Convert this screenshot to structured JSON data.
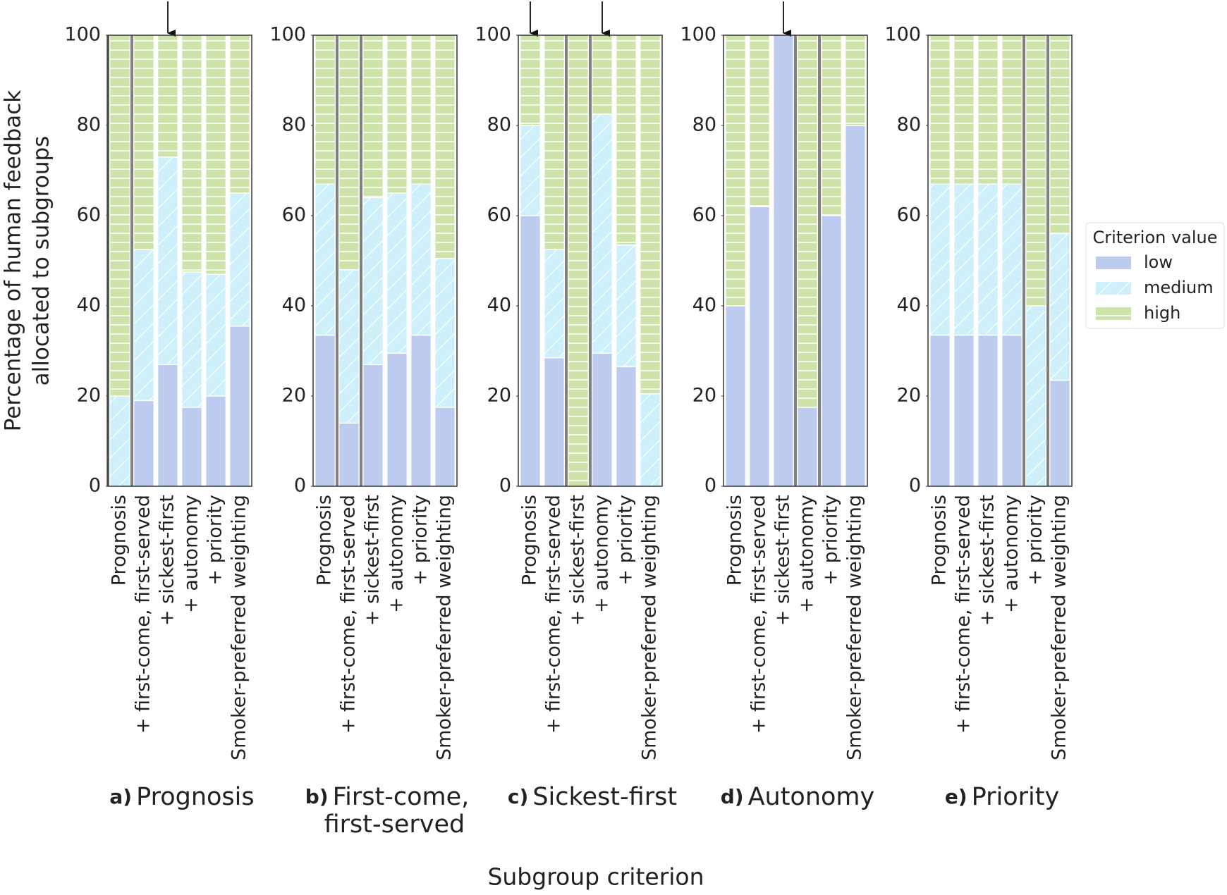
{
  "ylabel": [
    "Percentage of human feedback",
    "allocated to subgroups"
  ],
  "xlabel": "Subgroup criterion",
  "legend_title": "Criterion value",
  "chart_data": [
    {
      "type": "stacked_bar",
      "label": "a)",
      "title": [
        "Prognosis"
      ],
      "categories": [
        "Prognosis",
        "+ first-come, first-served",
        "+ sickest-first",
        "+ autonomy",
        "+ priority",
        "Smoker-preferred weighting"
      ],
      "highlight": 0,
      "arrows": [
        2
      ],
      "ylim": [
        0,
        100
      ],
      "yticks": [
        0,
        20,
        40,
        60,
        80,
        100
      ],
      "series": [
        {
          "name": "low",
          "color": "#bccbee",
          "values": [
            0,
            19,
            27,
            17.5,
            20,
            35.5
          ]
        },
        {
          "name": "medium",
          "color": "#cdf0fb",
          "values": [
            20,
            33.5,
            46,
            30,
            27,
            29.5
          ]
        },
        {
          "name": "high",
          "color": "#cde3a9",
          "values": [
            80,
            47.5,
            27,
            52.5,
            53,
            35
          ]
        }
      ]
    },
    {
      "type": "stacked_bar",
      "label": "b)",
      "title": [
        "First-come,",
        "first-served"
      ],
      "categories": [
        "Prognosis",
        "+ first-come, first-served",
        "+ sickest-first",
        "+ autonomy",
        "+ priority",
        "Smoker-preferred weighting"
      ],
      "highlight": 1,
      "arrows": [],
      "ylim": [
        0,
        100
      ],
      "yticks": [
        0,
        20,
        40,
        60,
        80,
        100
      ],
      "series": [
        {
          "name": "low",
          "color": "#bccbee",
          "values": [
            33.5,
            14,
            27,
            29.5,
            33.5,
            17.5
          ]
        },
        {
          "name": "medium",
          "color": "#cdf0fb",
          "values": [
            33.5,
            34,
            37,
            35.5,
            33.5,
            33
          ]
        },
        {
          "name": "high",
          "color": "#cde3a9",
          "values": [
            33,
            52,
            36,
            35,
            33,
            49.5
          ]
        }
      ]
    },
    {
      "type": "stacked_bar",
      "label": "c)",
      "title": [
        "Sickest-first"
      ],
      "categories": [
        "Prognosis",
        "+ first-come, first-served",
        "+ sickest-first",
        "+ autonomy",
        "+ priority",
        "Smoker-preferred weighting"
      ],
      "highlight": 2,
      "arrows": [
        0,
        3
      ],
      "ylim": [
        0,
        100
      ],
      "yticks": [
        0,
        20,
        40,
        60,
        80,
        100
      ],
      "series": [
        {
          "name": "low",
          "color": "#bccbee",
          "values": [
            60,
            28.5,
            0,
            29.5,
            26.5,
            0
          ]
        },
        {
          "name": "medium",
          "color": "#cdf0fb",
          "values": [
            20,
            24,
            0,
            53,
            27,
            20.5
          ]
        },
        {
          "name": "high",
          "color": "#cde3a9",
          "values": [
            20,
            47.5,
            100,
            17.5,
            46.5,
            79.5
          ]
        }
      ]
    },
    {
      "type": "stacked_bar",
      "label": "d)",
      "title": [
        "Autonomy"
      ],
      "categories": [
        "Prognosis",
        "+ first-come, first-served",
        "+ sickest-first",
        "+ autonomy",
        "+ priority",
        "Smoker-preferred weighting"
      ],
      "highlight": 3,
      "arrows": [
        2
      ],
      "ylim": [
        0,
        100
      ],
      "yticks": [
        0,
        20,
        40,
        60,
        80,
        100
      ],
      "series": [
        {
          "name": "low",
          "color": "#bccbee",
          "values": [
            40,
            62,
            100,
            17.5,
            60,
            80
          ]
        },
        {
          "name": "medium",
          "color": "#cdf0fb",
          "values": [
            0,
            0,
            0,
            0,
            0,
            0
          ]
        },
        {
          "name": "high",
          "color": "#cde3a9",
          "values": [
            60,
            38,
            0,
            82.5,
            40,
            20
          ]
        }
      ]
    },
    {
      "type": "stacked_bar",
      "label": "e)",
      "title": [
        "Priority"
      ],
      "categories": [
        "Prognosis",
        "+ first-come, first-served",
        "+ sickest-first",
        "+ autonomy",
        "+ priority",
        "Smoker-preferred weighting"
      ],
      "highlight": 4,
      "arrows": [],
      "ylim": [
        0,
        100
      ],
      "yticks": [
        0,
        20,
        40,
        60,
        80,
        100
      ],
      "series": [
        {
          "name": "low",
          "color": "#bccbee",
          "values": [
            33.5,
            33.5,
            33.5,
            33.5,
            0,
            23.5
          ]
        },
        {
          "name": "medium",
          "color": "#cdf0fb",
          "values": [
            33.5,
            33.5,
            33.5,
            33.5,
            40,
            32.5
          ]
        },
        {
          "name": "high",
          "color": "#cde3a9",
          "values": [
            33,
            33,
            33,
            33,
            60,
            44
          ]
        }
      ]
    }
  ]
}
